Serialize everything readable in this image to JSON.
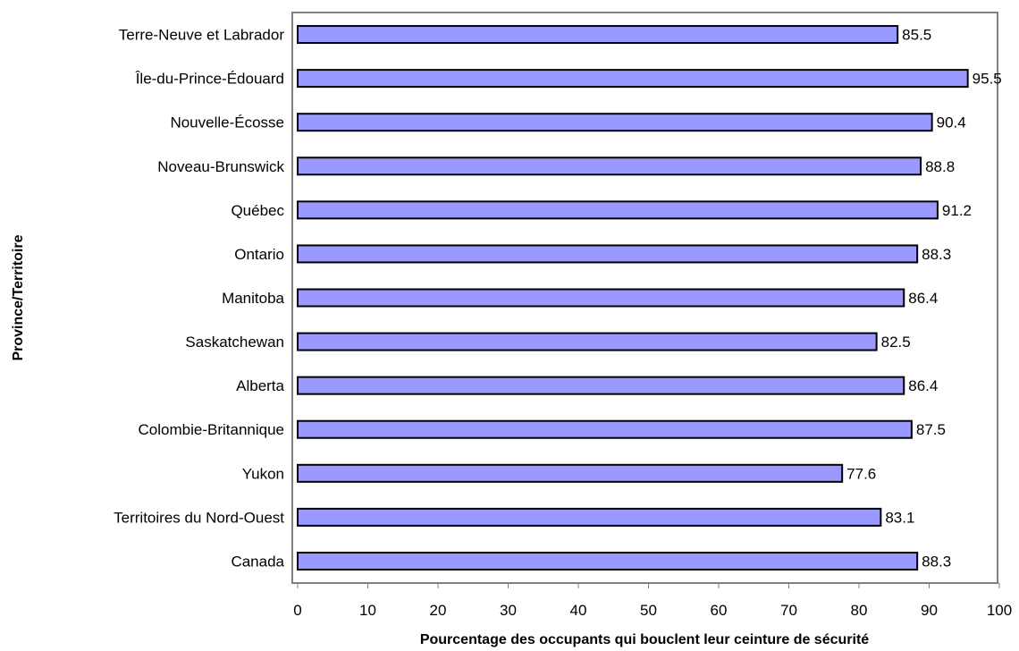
{
  "chart_data": {
    "type": "bar",
    "orientation": "horizontal",
    "categories": [
      "Terre-Neuve et Labrador",
      "Île-du-Prince-Édouard",
      "Nouvelle-Écosse",
      "Noveau-Brunswick",
      "Québec",
      "Ontario",
      "Manitoba",
      "Saskatchewan",
      "Alberta",
      "Colombie-Britannique",
      "Yukon",
      "Territoires du Nord-Ouest",
      "Canada"
    ],
    "values": [
      85.5,
      95.5,
      90.4,
      88.8,
      91.2,
      88.3,
      86.4,
      82.5,
      86.4,
      87.5,
      77.6,
      83.1,
      88.3
    ],
    "value_labels": [
      "85.5",
      "95.5",
      "90.4",
      "88.8",
      "91.2",
      "88.3",
      "86.4",
      "82.5",
      "86.4",
      "87.5",
      "77.6",
      "83.1",
      "88.3"
    ],
    "xlabel": "Pourcentage des occupants qui bouclent leur ceinture de sécurité",
    "ylabel": "Province/Territoire",
    "xlim": [
      0,
      100
    ],
    "xticks": [
      0,
      10,
      20,
      30,
      40,
      50,
      60,
      70,
      80,
      90,
      100
    ],
    "xtick_labels": [
      "0",
      "10",
      "20",
      "30",
      "40",
      "50",
      "60",
      "70",
      "80",
      "90",
      "100"
    ],
    "grid": false,
    "legend": "none",
    "colors": {
      "bar_fill": "#9999ff",
      "bar_stroke": "#000000",
      "frame": "#808080"
    }
  }
}
